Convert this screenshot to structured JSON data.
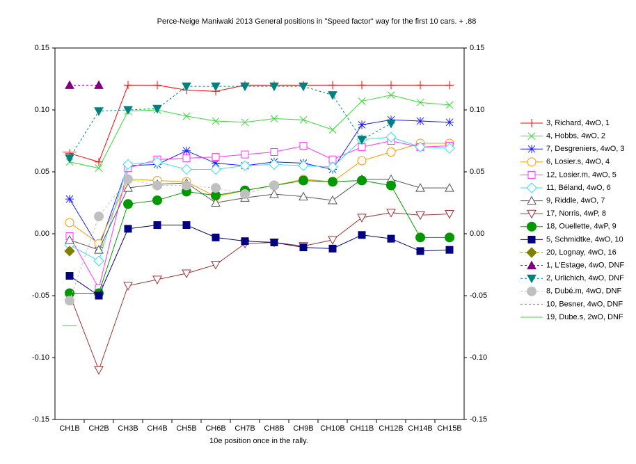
{
  "chart_data": {
    "type": "line",
    "title": "Perce-Neige Maniwaki 2013  General positions in \"Speed factor\" way for the first 10 cars. + .88",
    "xlabel": "10e position once in the rally.",
    "categories": [
      "CH1B",
      "CH2B",
      "CH3B",
      "CH4B",
      "CH5B",
      "CH6B",
      "CH7B",
      "CH8B",
      "CH9B",
      "CH10B",
      "CH11B",
      "CH12B",
      "CH14B",
      "CH15B"
    ],
    "ylim": [
      -0.15,
      0.15
    ],
    "yticks": [
      -0.15,
      {
        "value": -0.1,
        "label": "-0.10"
      },
      -0.05,
      {
        "value": 0,
        "label": "0.00"
      },
      0.05,
      {
        "value": 0.1,
        "label": "0.10"
      },
      0.15
    ],
    "y2lim": [
      -0.15,
      0.15
    ],
    "y2ticks": [
      -0.15,
      {
        "value": -0.1,
        "label": "-0.10"
      },
      -0.05,
      {
        "value": 0,
        "label": "0.00"
      },
      0.05,
      {
        "value": 0.1,
        "label": "0.10"
      },
      0.15
    ],
    "legend": "right",
    "series": [
      {
        "name": "3, Richard, 4wO, 1",
        "color": "#ff0000",
        "marker": "plus",
        "values": [
          0.065,
          0.058,
          0.12,
          0.12,
          0.116,
          0.115,
          0.12,
          0.12,
          0.12,
          0.12,
          0.12,
          0.12,
          0.12,
          0.12
        ]
      },
      {
        "name": "4, Hobbs, 4wO, 2",
        "color": "#33dd33",
        "marker": "x",
        "values": [
          0.058,
          0.053,
          0.099,
          0.1,
          0.095,
          0.091,
          0.09,
          0.093,
          0.092,
          0.084,
          0.107,
          0.112,
          0.106,
          0.104
        ]
      },
      {
        "name": "7, Desgreniers, 4wO, 3",
        "color": "#1a1aff",
        "marker": "star",
        "values": [
          0.028,
          -0.011,
          0.055,
          0.056,
          0.067,
          0.057,
          0.055,
          0.058,
          0.057,
          0.052,
          0.088,
          0.092,
          0.091,
          0.09
        ]
      },
      {
        "name": "6, Losier.s, 4wO, 4",
        "color": "#ff9900",
        "marker": "circle",
        "values": [
          0.009,
          -0.008,
          0.044,
          0.043,
          0.042,
          0.03,
          0.035,
          0.039,
          0.044,
          0.042,
          0.059,
          0.066,
          0.073,
          0.073
        ]
      },
      {
        "name": "12, Losier.m, 4wO, 5",
        "color": "#ff33ff",
        "marker": "square",
        "values": [
          -0.002,
          -0.044,
          0.053,
          0.06,
          0.061,
          0.062,
          0.064,
          0.066,
          0.071,
          0.06,
          0.07,
          0.075,
          0.07,
          0.071
        ]
      },
      {
        "name": "11, Béland, 4wO, 6",
        "color": "#33ddff",
        "marker": "diamond",
        "values": [
          -0.009,
          -0.022,
          0.056,
          0.058,
          0.052,
          0.052,
          0.055,
          0.056,
          0.055,
          0.054,
          0.076,
          0.078,
          0.07,
          0.069
        ]
      },
      {
        "name": "9, Riddle, 4wO, 7",
        "color": "#555555",
        "marker": "triangle",
        "values": [
          -0.005,
          -0.013,
          0.037,
          0.04,
          0.041,
          0.025,
          0.029,
          0.032,
          0.03,
          0.027,
          0.044,
          0.044,
          0.037,
          0.037
        ]
      },
      {
        "name": "17, Norris, 4wP, 8",
        "color": "#993333",
        "marker": "triangle-down",
        "values": [
          -0.049,
          -0.11,
          -0.042,
          -0.037,
          -0.032,
          -0.025,
          -0.008,
          -0.007,
          -0.01,
          -0.005,
          0.013,
          0.017,
          0.015,
          0.016
        ]
      },
      {
        "name": "18, Ouellette, 4wP, 9",
        "color": "#009900",
        "marker": "circle-filled",
        "values": [
          -0.048,
          -0.048,
          0.024,
          0.027,
          0.034,
          0.031,
          0.035,
          0.039,
          0.043,
          0.042,
          0.043,
          0.039,
          -0.003,
          -0.003
        ]
      },
      {
        "name": "5, Schmidtke, 4wO, 10",
        "color": "#000080",
        "marker": "square-filled",
        "values": [
          -0.034,
          -0.05,
          0.004,
          0.007,
          0.007,
          -0.003,
          -0.006,
          -0.007,
          -0.011,
          -0.012,
          -0.001,
          -0.004,
          -0.014,
          -0.013
        ]
      },
      {
        "name": "20, Lognay, 4wO, 16",
        "color": "#808000",
        "marker": "diamond-filled",
        "dash": true,
        "values": [
          -0.014,
          null,
          null,
          null,
          null,
          null,
          null,
          null,
          null,
          null,
          null,
          null,
          null,
          null
        ]
      },
      {
        "name": "1, L'Estage, 4wO, DNF",
        "color": "#800080",
        "marker": "triangle-filled",
        "dash": true,
        "values": [
          0.12,
          0.12,
          null,
          null,
          null,
          null,
          null,
          null,
          null,
          null,
          null,
          null,
          null,
          null
        ]
      },
      {
        "name": "2, Urlichich, 4wO, DNF",
        "color": "#008080",
        "marker": "triangle-down-filled",
        "dash": true,
        "values": [
          0.061,
          0.099,
          0.1,
          0.101,
          0.119,
          0.119,
          0.119,
          0.119,
          0.119,
          0.112,
          0.076,
          0.089,
          null,
          null
        ]
      },
      {
        "name": "8, Dubé.m, 4wO, DNF",
        "color": "#c0c0c0",
        "marker": "circle-filled",
        "dash": true,
        "values": [
          -0.054,
          0.014,
          0.044,
          0.039,
          0.039,
          0.037,
          0.032,
          0.039,
          null,
          null,
          null,
          null,
          null,
          null
        ]
      },
      {
        "name": "10, Besner, 4wO, DNF",
        "color": "#ff6666",
        "marker": "none",
        "dash": true,
        "values": [
          0.066,
          null,
          null,
          null,
          null,
          null,
          null,
          null,
          null,
          null,
          null,
          null,
          null,
          null
        ]
      },
      {
        "name": "19, Dube.s, 2wO, DNF",
        "color": "#33dd33",
        "marker": "none",
        "values": [
          -0.074,
          null,
          null,
          null,
          null,
          null,
          null,
          null,
          null,
          null,
          null,
          null,
          null,
          null
        ]
      }
    ]
  }
}
